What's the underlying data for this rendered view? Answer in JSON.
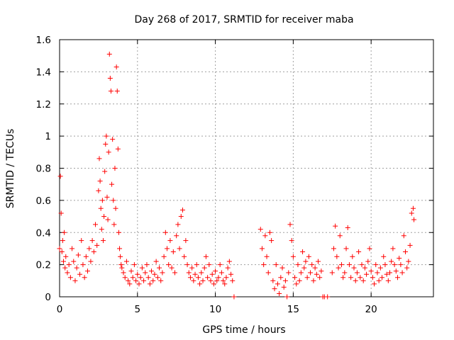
{
  "chart_data": {
    "type": "scatter",
    "title": "Day 268 of 2017, SRMTID for receiver maba",
    "xlabel": "GPS time / hours",
    "ylabel": "SRMTID / TECUs",
    "xlim": [
      0,
      24
    ],
    "ylim": [
      0,
      1.6
    ],
    "xticks": [
      0,
      5,
      10,
      15,
      20
    ],
    "yticks": [
      0,
      0.2,
      0.4,
      0.6,
      0.8,
      1.0,
      1.2,
      1.4,
      1.6
    ],
    "ytick_labels": [
      "0",
      "0.2",
      "0.4",
      "0.6",
      "0.8",
      "1",
      "1.2",
      "1.4",
      "1.6"
    ],
    "grid": true,
    "marker": "+",
    "color": "#ff0000",
    "series": [
      {
        "name": "SRMTID",
        "x": [
          0.0,
          0.05,
          0.1,
          0.15,
          0.2,
          0.25,
          0.3,
          0.35,
          0.4,
          0.5,
          0.6,
          0.7,
          0.8,
          0.9,
          1.0,
          1.1,
          1.2,
          1.3,
          1.4,
          1.5,
          1.6,
          1.7,
          1.8,
          1.9,
          2.0,
          2.1,
          2.2,
          2.3,
          2.4,
          2.5,
          2.55,
          2.6,
          2.65,
          2.7,
          2.75,
          2.8,
          2.85,
          2.9,
          2.95,
          3.0,
          3.05,
          3.1,
          3.15,
          3.2,
          3.25,
          3.3,
          3.35,
          3.4,
          3.45,
          3.5,
          3.55,
          3.6,
          3.65,
          3.7,
          3.75,
          3.8,
          3.85,
          3.9,
          3.95,
          4.0,
          4.1,
          4.2,
          4.3,
          4.4,
          4.5,
          4.6,
          4.7,
          4.8,
          4.9,
          5.0,
          5.1,
          5.2,
          5.3,
          5.4,
          5.5,
          5.6,
          5.7,
          5.8,
          5.9,
          6.0,
          6.1,
          6.2,
          6.3,
          6.4,
          6.5,
          6.6,
          6.7,
          6.8,
          6.9,
          7.0,
          7.1,
          7.2,
          7.3,
          7.4,
          7.5,
          7.6,
          7.7,
          7.8,
          7.9,
          8.0,
          8.1,
          8.2,
          8.3,
          8.4,
          8.5,
          8.6,
          8.7,
          8.8,
          8.9,
          9.0,
          9.1,
          9.2,
          9.3,
          9.4,
          9.5,
          9.6,
          9.7,
          9.8,
          9.9,
          10.0,
          10.1,
          10.2,
          10.3,
          10.4,
          10.5,
          10.6,
          10.7,
          10.8,
          10.9,
          11.0,
          11.1,
          11.2,
          12.9,
          13.0,
          13.1,
          13.2,
          13.3,
          13.4,
          13.5,
          13.6,
          13.7,
          13.8,
          13.9,
          14.0,
          14.1,
          14.2,
          14.3,
          14.4,
          14.5,
          14.6,
          14.7,
          14.8,
          14.9,
          15.0,
          15.1,
          15.2,
          15.3,
          15.4,
          15.5,
          15.6,
          15.7,
          15.8,
          15.9,
          16.0,
          16.1,
          16.2,
          16.3,
          16.4,
          16.5,
          16.6,
          16.7,
          16.8,
          16.9,
          17.0,
          17.2,
          17.5,
          17.6,
          17.7,
          17.8,
          17.9,
          18.0,
          18.1,
          18.2,
          18.3,
          18.4,
          18.5,
          18.6,
          18.7,
          18.8,
          18.9,
          19.0,
          19.1,
          19.2,
          19.3,
          19.4,
          19.5,
          19.6,
          19.7,
          19.8,
          19.9,
          20.0,
          20.1,
          20.2,
          20.3,
          20.4,
          20.5,
          20.6,
          20.7,
          20.8,
          20.9,
          21.0,
          21.1,
          21.2,
          21.3,
          21.4,
          21.5,
          21.6,
          21.7,
          21.8,
          21.9,
          22.0,
          22.1,
          22.2,
          22.3,
          22.4,
          22.5,
          22.6,
          22.7,
          22.75
        ],
        "y": [
          0.3,
          0.75,
          0.52,
          0.28,
          0.35,
          0.22,
          0.4,
          0.18,
          0.25,
          0.15,
          0.2,
          0.12,
          0.3,
          0.22,
          0.1,
          0.18,
          0.26,
          0.14,
          0.35,
          0.2,
          0.12,
          0.25,
          0.16,
          0.3,
          0.22,
          0.35,
          0.28,
          0.45,
          0.32,
          0.66,
          0.86,
          0.72,
          0.55,
          0.42,
          0.6,
          0.35,
          0.5,
          0.78,
          0.95,
          1.0,
          0.62,
          0.48,
          0.9,
          1.51,
          1.36,
          1.28,
          0.7,
          0.98,
          0.6,
          0.45,
          0.8,
          0.55,
          1.43,
          1.28,
          0.92,
          0.4,
          0.3,
          0.25,
          0.2,
          0.18,
          0.15,
          0.12,
          0.22,
          0.1,
          0.08,
          0.16,
          0.12,
          0.2,
          0.1,
          0.14,
          0.08,
          0.12,
          0.18,
          0.1,
          0.15,
          0.2,
          0.12,
          0.08,
          0.16,
          0.1,
          0.14,
          0.22,
          0.12,
          0.18,
          0.1,
          0.15,
          0.25,
          0.4,
          0.3,
          0.2,
          0.35,
          0.18,
          0.28,
          0.15,
          0.38,
          0.45,
          0.3,
          0.5,
          0.54,
          0.25,
          0.35,
          0.2,
          0.15,
          0.12,
          0.18,
          0.1,
          0.14,
          0.2,
          0.12,
          0.08,
          0.15,
          0.1,
          0.18,
          0.25,
          0.12,
          0.2,
          0.1,
          0.14,
          0.08,
          0.16,
          0.1,
          0.12,
          0.2,
          0.15,
          0.1,
          0.08,
          0.12,
          0.18,
          0.22,
          0.14,
          0.1,
          0.0,
          0.42,
          0.3,
          0.2,
          0.38,
          0.25,
          0.15,
          0.4,
          0.35,
          0.1,
          0.05,
          0.2,
          0.08,
          0.02,
          0.12,
          0.18,
          0.06,
          0.1,
          0.0,
          0.15,
          0.45,
          0.35,
          0.25,
          0.12,
          0.08,
          0.2,
          0.1,
          0.15,
          0.28,
          0.18,
          0.22,
          0.12,
          0.25,
          0.15,
          0.2,
          0.1,
          0.18,
          0.14,
          0.22,
          0.12,
          0.16,
          0.0,
          0.0,
          0.0,
          0.15,
          0.3,
          0.44,
          0.25,
          0.18,
          0.38,
          0.2,
          0.12,
          0.15,
          0.3,
          0.43,
          0.2,
          0.12,
          0.25,
          0.18,
          0.1,
          0.15,
          0.28,
          0.12,
          0.2,
          0.1,
          0.18,
          0.14,
          0.22,
          0.3,
          0.16,
          0.12,
          0.08,
          0.2,
          0.15,
          0.1,
          0.18,
          0.12,
          0.25,
          0.2,
          0.14,
          0.1,
          0.15,
          0.22,
          0.3,
          0.2,
          0.16,
          0.12,
          0.24,
          0.2,
          0.15,
          0.38,
          0.28,
          0.18,
          0.22,
          0.32,
          0.52,
          0.55,
          0.48
        ]
      }
    ]
  }
}
